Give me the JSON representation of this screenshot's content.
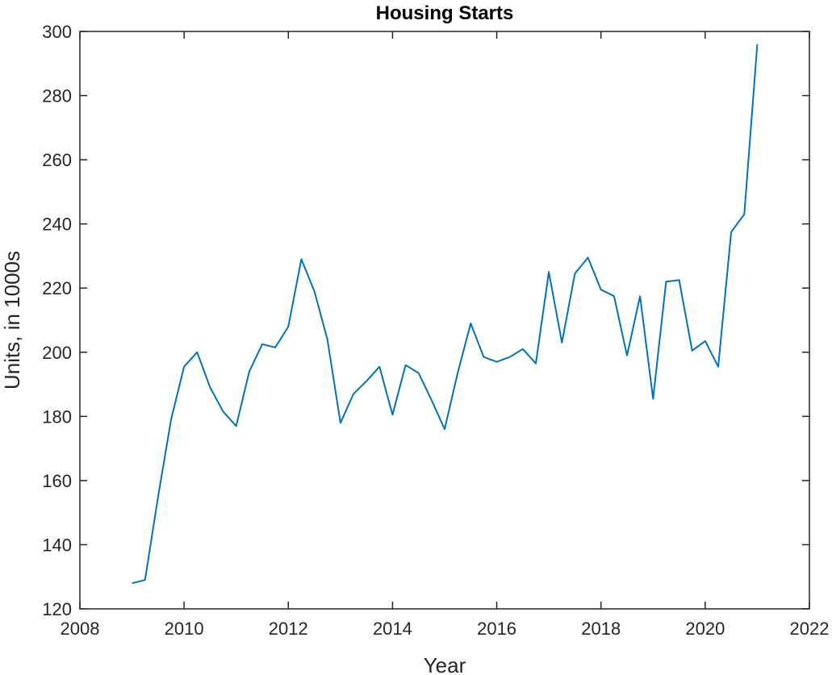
{
  "chart_data": {
    "type": "line",
    "title": "Housing Starts",
    "xlabel": "Year",
    "ylabel": "Units, in 1000s",
    "xlim": [
      2008,
      2022
    ],
    "ylim": [
      120,
      300
    ],
    "xticks": [
      2008,
      2010,
      2012,
      2014,
      2016,
      2018,
      2020,
      2022
    ],
    "yticks": [
      120,
      140,
      160,
      180,
      200,
      220,
      240,
      260,
      280,
      300
    ],
    "grid": false,
    "line_color": "#0072BD",
    "axis_color": "#262626",
    "series": [
      {
        "x": [
          2009.0,
          2009.25,
          2009.5,
          2009.75,
          2010.0,
          2010.25,
          2010.5,
          2010.75,
          2011.0,
          2011.25,
          2011.5,
          2011.75,
          2012.0,
          2012.25,
          2012.5,
          2012.75,
          2013.0,
          2013.25,
          2013.5,
          2013.75,
          2014.0,
          2014.25,
          2014.5,
          2014.75,
          2015.0,
          2015.25,
          2015.5,
          2015.75,
          2016.0,
          2016.25,
          2016.5,
          2016.75,
          2017.0,
          2017.25,
          2017.5,
          2017.75,
          2018.0,
          2018.25,
          2018.5,
          2018.75,
          2019.0,
          2019.25,
          2019.5,
          2019.75,
          2020.0,
          2020.25,
          2020.5,
          2020.75,
          2021.0
        ],
        "y": [
          128,
          129,
          155,
          179,
          195.5,
          200,
          189,
          181.5,
          177,
          194,
          202.5,
          201.5,
          208,
          229,
          219,
          204,
          178,
          187,
          191,
          195.5,
          180.5,
          196,
          193.5,
          185,
          176,
          193.5,
          209,
          198.5,
          197,
          198.5,
          201,
          196.5,
          225,
          203,
          224.5,
          229.5,
          219.5,
          217.5,
          199,
          217.5,
          185.5,
          222,
          222.5,
          200.5,
          203.5,
          195.5,
          237.5,
          243,
          296
        ]
      }
    ]
  }
}
